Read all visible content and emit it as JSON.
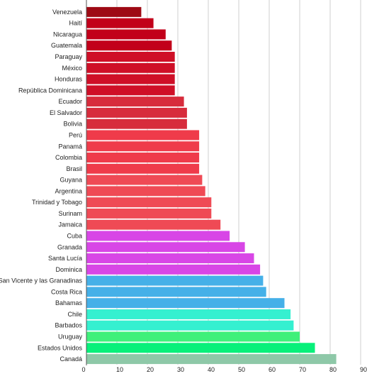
{
  "chart_data": {
    "type": "bar",
    "orientation": "horizontal",
    "title": "",
    "xlabel": "",
    "ylabel": "",
    "xlim": [
      0,
      90
    ],
    "x_ticks": [
      "0",
      "10",
      "20",
      "30",
      "40",
      "50",
      "60",
      "70",
      "80",
      "90"
    ],
    "grid": true,
    "legend": "none",
    "categories": [
      "Venezuela",
      "Haití",
      "Nicaragua",
      "Guatemala",
      "Paraguay",
      "México",
      "Honduras",
      "República Dominicana",
      "Ecuador",
      "El Salvador",
      "Bolivia",
      "Perú",
      "Panamá",
      "Colombia",
      "Brasil",
      "Guyana",
      "Argentina",
      "Trinidad y Tobago",
      "Surinam",
      "Jamaica",
      "Cuba",
      "Granada",
      "Santa Lucía",
      "Dominica",
      "San Vicente y las Granadinas",
      "Costa Rica",
      "Bahamas",
      "Chile",
      "Barbados",
      "Uruguay",
      "Estados Unidos",
      "Canadá"
    ],
    "values": [
      18,
      22,
      26,
      28,
      29,
      29,
      29,
      29,
      32,
      33,
      33,
      37,
      37,
      37,
      37,
      38,
      39,
      41,
      41,
      44,
      47,
      52,
      55,
      57,
      58,
      59,
      65,
      67,
      68,
      70,
      75,
      82
    ],
    "colors": [
      "#9e0a14",
      "#c2001a",
      "#c2001a",
      "#c2001a",
      "#cf0f27",
      "#cf0f27",
      "#cf0f27",
      "#cf0f27",
      "#d72c3c",
      "#d72c3c",
      "#d72c3c",
      "#ef3b4a",
      "#ef3b4a",
      "#ef3b4a",
      "#ef3b4a",
      "#ef4a55",
      "#ef4a55",
      "#ef4a55",
      "#ef4a55",
      "#ef4a55",
      "#d846e6",
      "#d846e6",
      "#d846e6",
      "#d846e6",
      "#45b0e8",
      "#45b0e8",
      "#45b0e8",
      "#35f0d0",
      "#35f0d0",
      "#3ff07a",
      "#08f07a",
      "#8ec8a8"
    ]
  }
}
